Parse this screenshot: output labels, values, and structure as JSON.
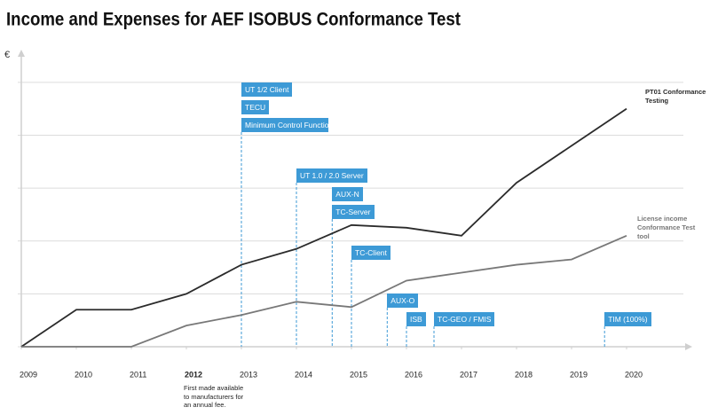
{
  "chart_data": {
    "type": "line",
    "title": "Income and Expenses for AEF ISOBUS Conformance Test",
    "y_label": "€",
    "x": [
      2009,
      2010,
      2011,
      2012,
      2013,
      2014,
      2015,
      2016,
      2017,
      2018,
      2019,
      2020
    ],
    "xlim": [
      2009,
      2021
    ],
    "xticks": [
      2009,
      2010,
      2011,
      2012,
      2013,
      2014,
      2015,
      2016,
      2017,
      2018,
      2019,
      2020
    ],
    "ylim": [
      0,
      5.5
    ],
    "yticks": [
      0,
      1,
      2,
      3,
      4,
      5
    ],
    "grid": true,
    "series": [
      {
        "name": "PT01 Conformance Testing",
        "color": "#2b2b2b",
        "values": [
          0,
          0.7,
          0.7,
          1.0,
          1.55,
          1.85,
          2.3,
          2.25,
          2.1,
          3.1,
          3.8,
          4.5
        ]
      },
      {
        "name": "License income Conformance Test tool",
        "color": "#787878",
        "values": [
          0,
          0,
          0,
          0.4,
          0.6,
          0.85,
          0.75,
          1.25,
          1.4,
          1.55,
          1.65,
          2.1
        ]
      }
    ],
    "marker_color": "#3d9ad6",
    "markers": [
      {
        "x": 2013,
        "labels": [
          "UT 1/2 Client",
          "TECU",
          "Minimum Control Function and Physical Layer"
        ]
      },
      {
        "x": 2014,
        "labels": [
          "UT 1.0 / 2.0 Server"
        ]
      },
      {
        "x": 2014.65,
        "labels": [
          "AUX-N",
          "TC-Server"
        ]
      },
      {
        "x": 2015,
        "labels": [
          "TC-Client"
        ]
      },
      {
        "x": 2015.65,
        "labels": [
          "AUX-O"
        ]
      },
      {
        "x": 2016,
        "labels": [
          "ISB"
        ]
      },
      {
        "x": 2016.5,
        "labels": [
          "TC-GEO / FMIS"
        ]
      },
      {
        "x": 2019.6,
        "labels": [
          "TIM (100%)"
        ]
      }
    ],
    "note": {
      "x": 2012,
      "text": "First made available to manufacturers for an annual fee."
    }
  }
}
